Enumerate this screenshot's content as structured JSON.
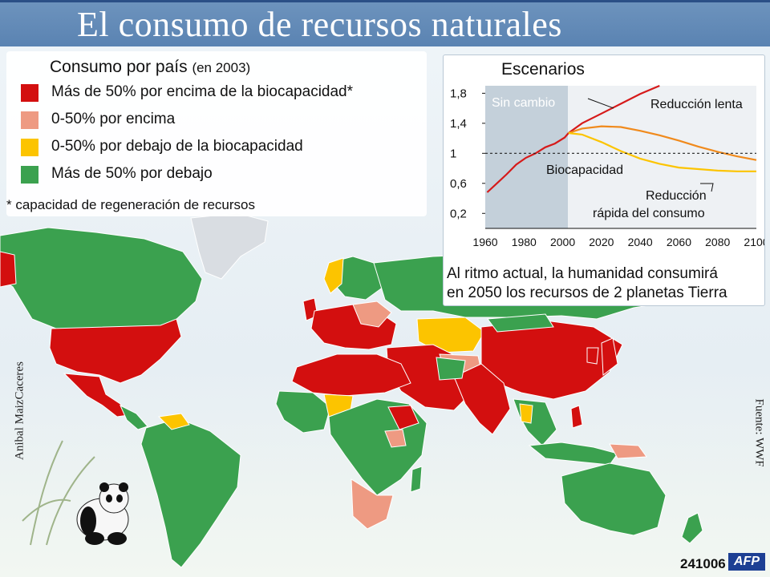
{
  "title": "El consumo de recursos naturales",
  "legend": {
    "title": "Consumo por país",
    "title_note": "(en 2003)",
    "items": [
      {
        "label": "Más de 50% por encima de la biocapacidad*",
        "color": "#d30f0f"
      },
      {
        "label": "0-50% por encima",
        "color": "#ee9a82"
      },
      {
        "label": "0-50% por debajo de la biocapacidad",
        "color": "#fcc400"
      },
      {
        "label": "Más de 50% por debajo",
        "color": "#3ba14f"
      }
    ],
    "footnote": "* capacidad de regeneración de recursos"
  },
  "scenario": {
    "title": "Escenarios",
    "region_label": "Sin cambio",
    "line_labels": [
      "Reducción lenta",
      "Reducción",
      "rápida del  consumo",
      "Biocapacidad"
    ],
    "y_ticks": [
      "1,8",
      "1,4",
      "1",
      "0,6",
      "0,2"
    ],
    "x_ticks": [
      "1960",
      "1980",
      "2000",
      "2020",
      "2040",
      "2060",
      "2080",
      "2100"
    ],
    "caption_lines": [
      "Al ritmo actual, la humanidad consumirá",
      "en 2050 los recursos de 2 planetas Tierra"
    ]
  },
  "chart_data": {
    "type": "line",
    "title": "Escenarios",
    "xlabel": "",
    "ylabel": "",
    "xlim": [
      1960,
      2100
    ],
    "ylim": [
      0,
      1.9
    ],
    "series": [
      {
        "name": "Sin cambio",
        "x": [
          1961,
          1966,
          1971,
          1976,
          1981,
          1986,
          1991,
          1996,
          2001,
          2003
        ],
        "y": [
          0.48,
          0.6,
          0.72,
          0.85,
          0.94,
          1.0,
          1.08,
          1.13,
          1.21,
          1.27
        ],
        "color": "#d61a1a"
      },
      {
        "name": "",
        "x": [
          2003,
          2010,
          2020,
          2030,
          2040,
          2050
        ],
        "y": [
          1.27,
          1.4,
          1.53,
          1.66,
          1.79,
          1.9
        ],
        "color": "#d61a1a"
      },
      {
        "name": "Reducción lenta",
        "x": [
          2003,
          2010,
          2020,
          2030,
          2040,
          2050,
          2060,
          2070,
          2080,
          2090,
          2100
        ],
        "y": [
          1.27,
          1.33,
          1.36,
          1.35,
          1.3,
          1.24,
          1.17,
          1.09,
          1.02,
          0.96,
          0.91
        ],
        "color": "#f08a1c"
      },
      {
        "name": "Reducción rápida del consumo",
        "x": [
          2003,
          2010,
          2020,
          2030,
          2040,
          2050,
          2060,
          2070,
          2080,
          2090,
          2100
        ],
        "y": [
          1.27,
          1.25,
          1.15,
          1.03,
          0.93,
          0.86,
          0.81,
          0.79,
          0.77,
          0.76,
          0.76
        ],
        "color": "#fcc400"
      },
      {
        "name": "Biocapacidad",
        "x": [
          1960,
          2100
        ],
        "y": [
          1,
          1
        ],
        "color": "#222222"
      }
    ]
  },
  "credits": {
    "author": "Anibal MaizCaceres",
    "source": "Fuente: WWF",
    "code": "241006",
    "agency": "AFP"
  }
}
